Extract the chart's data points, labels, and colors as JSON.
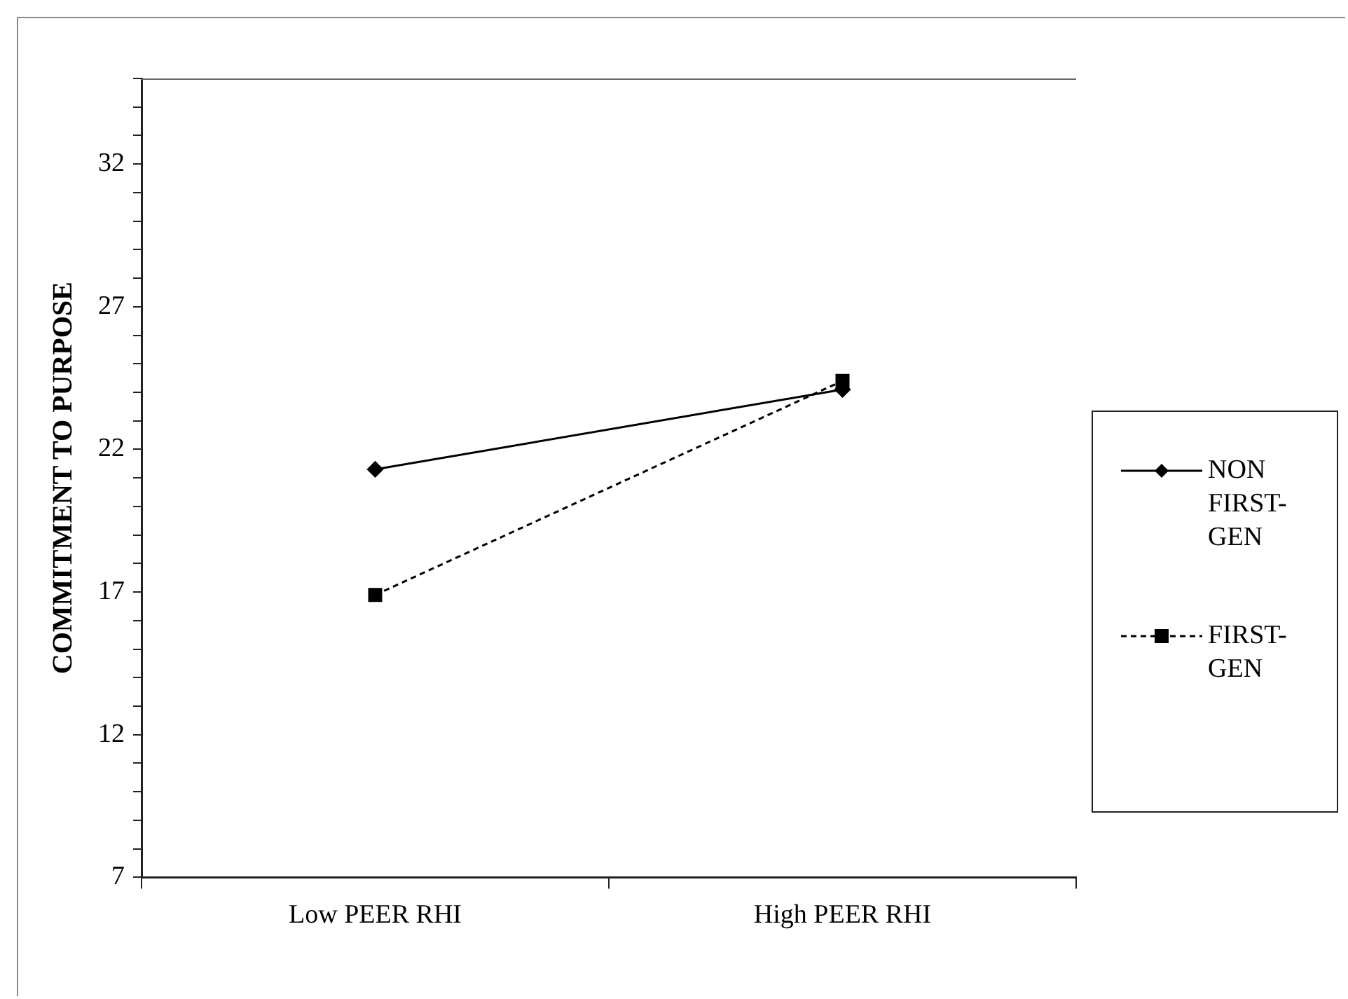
{
  "chart_data": {
    "type": "line",
    "ylabel": "COMMITMENT TO PURPOSE",
    "categories": [
      "Low PEER RHI",
      "High PEER RHI"
    ],
    "series": [
      {
        "name": "NON FIRST-GEN",
        "color": "#000000",
        "values": [
          21.3,
          24.1
        ],
        "marker": "diamond",
        "line_style": "solid"
      },
      {
        "name": "FIRST-GEN",
        "color": "#000000",
        "values": [
          16.9,
          24.4
        ],
        "marker": "square",
        "line_style": "dashed"
      }
    ],
    "ylim": [
      7,
      35
    ],
    "yticks": [
      7,
      {
        "value": 8,
        "label": null
      },
      {
        "value": 9,
        "label": null
      },
      {
        "value": 10,
        "label": null
      },
      {
        "value": 11,
        "label": null
      },
      12,
      {
        "value": 13,
        "label": null
      },
      {
        "value": 14,
        "label": null
      },
      {
        "value": 15,
        "label": null
      },
      {
        "value": 16,
        "label": null
      },
      17,
      {
        "value": 18,
        "label": null
      },
      {
        "value": 19,
        "label": null
      },
      {
        "value": 20,
        "label": null
      },
      {
        "value": 21,
        "label": null
      },
      22,
      {
        "value": 23,
        "label": null
      },
      {
        "value": 24,
        "label": null
      },
      {
        "value": 25,
        "label": null
      },
      {
        "value": 26,
        "label": null
      },
      27,
      {
        "value": 28,
        "label": null
      },
      {
        "value": 29,
        "label": null
      },
      {
        "value": 30,
        "label": null
      },
      {
        "value": 31,
        "label": null
      },
      32,
      {
        "value": 33,
        "label": null
      },
      {
        "value": 34,
        "label": null
      },
      {
        "value": 35,
        "label": null
      }
    ],
    "grid": false,
    "legend": "right"
  }
}
